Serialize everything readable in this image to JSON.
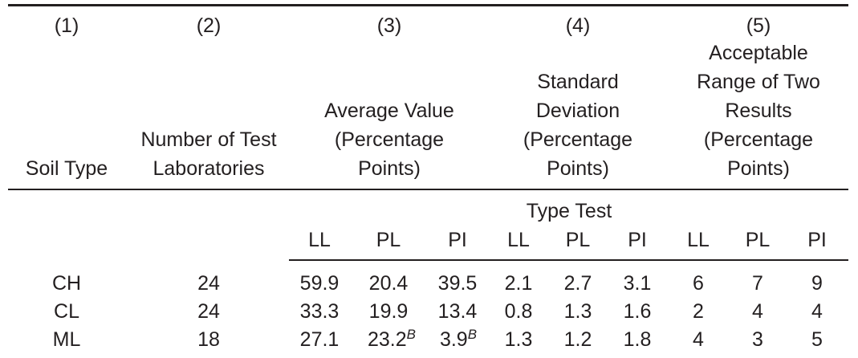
{
  "column_numbers": [
    "(1)",
    "(2)",
    "(3)",
    "(4)",
    "(5)"
  ],
  "headers": {
    "soil_type": "Soil Type",
    "num_labs": [
      "Number of Test",
      "Laboratories"
    ],
    "avg": [
      "Average Value",
      "(Percentage",
      "Points)"
    ],
    "std": [
      "Standard",
      "Deviation",
      "(Percentage",
      "Points)"
    ],
    "range": [
      "Acceptable",
      "Range of Two",
      "Results",
      "(Percentage",
      "Points)"
    ]
  },
  "type_test": "Type Test",
  "sub_headers": [
    "LL",
    "PL",
    "PI",
    "LL",
    "PL",
    "PI",
    "LL",
    "PL",
    "PI"
  ],
  "rows": [
    {
      "soil": "CH",
      "labs": "24",
      "avg": [
        "59.9",
        "20.4",
        "39.5"
      ],
      "std": [
        "2.1",
        "2.7",
        "3.1"
      ],
      "range": [
        "6",
        "7",
        "9"
      ]
    },
    {
      "soil": "CL",
      "labs": "24",
      "avg": [
        "33.3",
        "19.9",
        "13.4"
      ],
      "std": [
        "0.8",
        "1.3",
        "1.6"
      ],
      "range": [
        "2",
        "4",
        "4"
      ]
    },
    {
      "soil": "ML",
      "labs": "18",
      "avg": [
        "27.1",
        "23.2",
        "3.9"
      ],
      "std": [
        "1.3",
        "1.2",
        "1.8"
      ],
      "range": [
        "4",
        "3",
        "5"
      ]
    }
  ],
  "footnote_mark": "B"
}
